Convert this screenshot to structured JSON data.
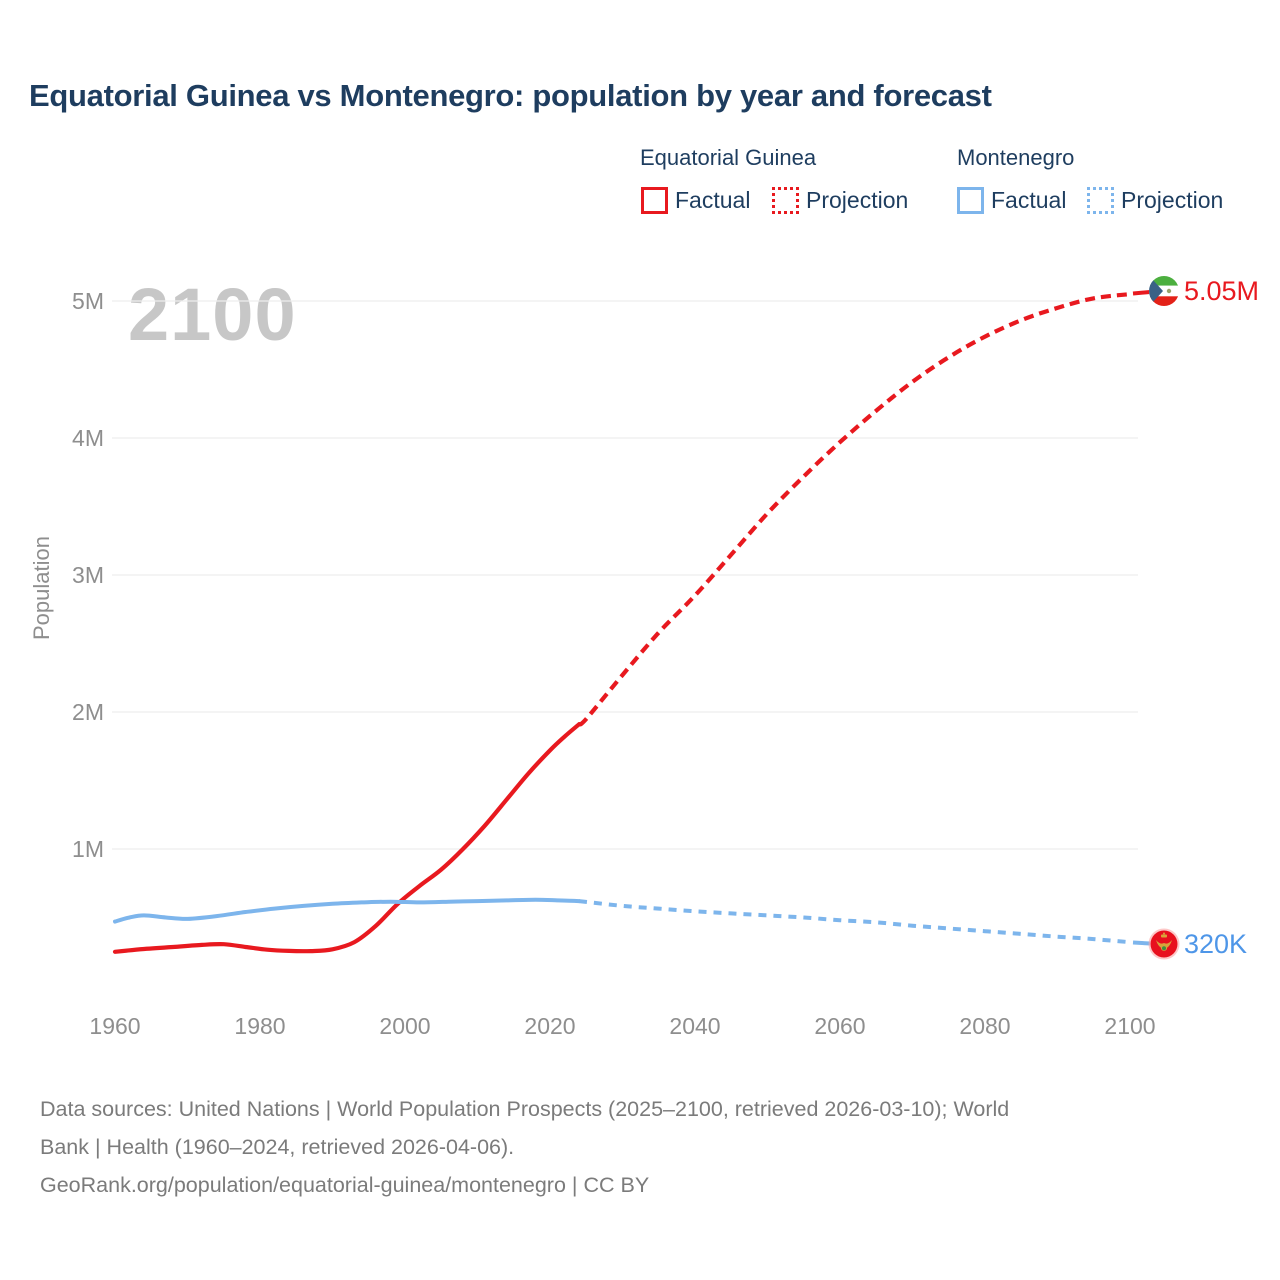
{
  "title": "Equatorial Guinea vs Montenegro: population by year and forecast",
  "watermark": "2100",
  "colors": {
    "equatorial_guinea": "#e8191f",
    "montenegro": "#7db5ec",
    "montenegro_label": "#4e96e8",
    "title_text": "#1e3d5f",
    "axis_text": "#8e8e8e",
    "gridline": "#ededed",
    "watermark_text": "#c7c7c7",
    "footer_text": "#7b7b7b"
  },
  "legend": {
    "groups": [
      {
        "label": "Equatorial Guinea",
        "color": "#e8191f",
        "items": [
          {
            "label": "Factual",
            "style": "solid"
          },
          {
            "label": "Projection",
            "style": "dotted"
          }
        ]
      },
      {
        "label": "Montenegro",
        "color": "#7db5ec",
        "items": [
          {
            "label": "Factual",
            "style": "solid"
          },
          {
            "label": "Projection",
            "style": "dotted"
          }
        ]
      }
    ]
  },
  "chart_data": {
    "type": "line",
    "title": "Equatorial Guinea vs Montenegro: population by year and forecast",
    "xlabel": "",
    "ylabel": "Population",
    "x_ticks": [
      "1960",
      "1980",
      "2000",
      "2020",
      "2040",
      "2060",
      "2080",
      "2100"
    ],
    "y_ticks": [
      {
        "label": "1M",
        "value": 1000000
      },
      {
        "label": "2M",
        "value": 2000000
      },
      {
        "label": "3M",
        "value": 3000000
      },
      {
        "label": "4M",
        "value": 4000000
      },
      {
        "label": "5M",
        "value": 5000000
      }
    ],
    "xlim": [
      1960,
      2100
    ],
    "ylim": [
      0,
      5300000
    ],
    "grid": "horizontal-only",
    "legend_position": "top-right",
    "series": [
      {
        "name": "Equatorial Guinea — Factual",
        "color": "#e8191f",
        "style": "solid",
        "points": [
          [
            1960,
            250000
          ],
          [
            1964,
            270000
          ],
          [
            1968,
            285000
          ],
          [
            1972,
            300000
          ],
          [
            1975,
            305000
          ],
          [
            1978,
            285000
          ],
          [
            1981,
            265000
          ],
          [
            1984,
            256000
          ],
          [
            1987,
            255000
          ],
          [
            1990,
            268000
          ],
          [
            1993,
            320000
          ],
          [
            1996,
            440000
          ],
          [
            1999,
            600000
          ],
          [
            2002,
            730000
          ],
          [
            2005,
            850000
          ],
          [
            2008,
            1000000
          ],
          [
            2011,
            1170000
          ],
          [
            2014,
            1360000
          ],
          [
            2017,
            1550000
          ],
          [
            2020,
            1720000
          ],
          [
            2022,
            1820000
          ],
          [
            2024,
            1910000
          ]
        ]
      },
      {
        "name": "Equatorial Guinea — Projection",
        "color": "#e8191f",
        "style": "dashed",
        "points": [
          [
            2024,
            1910000
          ],
          [
            2025,
            1950000
          ],
          [
            2030,
            2270000
          ],
          [
            2035,
            2580000
          ],
          [
            2040,
            2850000
          ],
          [
            2045,
            3150000
          ],
          [
            2050,
            3450000
          ],
          [
            2055,
            3720000
          ],
          [
            2060,
            3970000
          ],
          [
            2065,
            4200000
          ],
          [
            2070,
            4410000
          ],
          [
            2075,
            4590000
          ],
          [
            2080,
            4740000
          ],
          [
            2085,
            4860000
          ],
          [
            2090,
            4950000
          ],
          [
            2095,
            5020000
          ],
          [
            2100,
            5050000
          ]
        ]
      },
      {
        "name": "Montenegro — Factual",
        "color": "#7db5ec",
        "style": "solid",
        "points": [
          [
            1960,
            470000
          ],
          [
            1962,
            500000
          ],
          [
            1964,
            515000
          ],
          [
            1967,
            500000
          ],
          [
            1970,
            490000
          ],
          [
            1974,
            510000
          ],
          [
            1978,
            540000
          ],
          [
            1982,
            565000
          ],
          [
            1986,
            585000
          ],
          [
            1990,
            600000
          ],
          [
            1994,
            610000
          ],
          [
            1998,
            615000
          ],
          [
            2002,
            610000
          ],
          [
            2006,
            615000
          ],
          [
            2010,
            620000
          ],
          [
            2014,
            625000
          ],
          [
            2018,
            630000
          ],
          [
            2021,
            625000
          ],
          [
            2024,
            620000
          ]
        ]
      },
      {
        "name": "Montenegro — Projection",
        "color": "#7db5ec",
        "style": "dashed",
        "points": [
          [
            2024,
            620000
          ],
          [
            2030,
            585000
          ],
          [
            2035,
            565000
          ],
          [
            2040,
            545000
          ],
          [
            2045,
            530000
          ],
          [
            2050,
            515000
          ],
          [
            2055,
            500000
          ],
          [
            2060,
            480000
          ],
          [
            2065,
            465000
          ],
          [
            2070,
            440000
          ],
          [
            2075,
            420000
          ],
          [
            2080,
            400000
          ],
          [
            2085,
            380000
          ],
          [
            2090,
            360000
          ],
          [
            2095,
            342000
          ],
          [
            2100,
            320000
          ]
        ]
      }
    ],
    "end_labels": [
      {
        "text": "5.05M",
        "series": "Equatorial Guinea",
        "flag": "equatorial-guinea"
      },
      {
        "text": "320K",
        "series": "Montenegro",
        "flag": "montenegro"
      }
    ]
  },
  "footer": {
    "line1": "Data sources: United Nations | World Population Prospects (2025–2100, retrieved 2026-03-10); World",
    "line2": "Bank | Health (1960–2024, retrieved 2026-04-06).",
    "line3": "GeoRank.org/population/equatorial-guinea/montenegro | CC BY"
  }
}
